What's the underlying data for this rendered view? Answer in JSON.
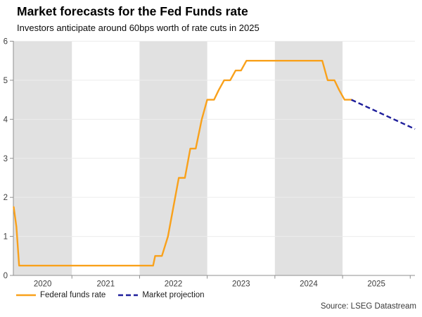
{
  "header": {
    "title": "Market forecasts for the Fed Funds rate",
    "subtitle": "Investors anticipate around 60bps worth of rate cuts in 2025"
  },
  "source": "Source: LSEG Datastream",
  "colors": {
    "fed_funds_orange": "#F9A11B",
    "projection_navy": "#1E1E9B",
    "year_band_gray": "#E1E1E1",
    "gridline": "#ECECEC",
    "axis": "#8F8F8F"
  },
  "chart_data": {
    "type": "line",
    "title": "Market forecasts for the Fed Funds rate",
    "subtitle": "Investors anticipate around 60bps worth of rate cuts in 2025",
    "xlabel": "",
    "ylabel": "",
    "x_ticks": [
      2020,
      2021,
      2022,
      2023,
      2024,
      2025
    ],
    "x_tick_labels": [
      "2020",
      "2021",
      "2022",
      "2023",
      "2024",
      "2025"
    ],
    "x_range": [
      2020.135,
      2026.07
    ],
    "y_ticks": [
      0,
      1,
      2,
      3,
      4,
      5,
      6
    ],
    "y_range": [
      0,
      6
    ],
    "grid": true,
    "shaded_year_bands": [
      2020,
      2022,
      2024
    ],
    "legend_position": "bottom-left",
    "series": [
      {
        "name": "Federal funds rate",
        "style": "solid",
        "color": "#F9A11B",
        "points": [
          [
            2020.14,
            1.75
          ],
          [
            2020.18,
            1.25
          ],
          [
            2020.22,
            0.25
          ],
          [
            2022.2,
            0.25
          ],
          [
            2022.23,
            0.5
          ],
          [
            2022.33,
            0.5
          ],
          [
            2022.42,
            1.0
          ],
          [
            2022.5,
            1.75
          ],
          [
            2022.58,
            2.5
          ],
          [
            2022.67,
            2.5
          ],
          [
            2022.75,
            3.25
          ],
          [
            2022.83,
            3.25
          ],
          [
            2022.92,
            4.0
          ],
          [
            2023.0,
            4.5
          ],
          [
            2023.1,
            4.5
          ],
          [
            2023.17,
            4.75
          ],
          [
            2023.25,
            5.0
          ],
          [
            2023.34,
            5.0
          ],
          [
            2023.42,
            5.25
          ],
          [
            2023.5,
            5.25
          ],
          [
            2023.58,
            5.5
          ],
          [
            2024.7,
            5.5
          ],
          [
            2024.78,
            5.0
          ],
          [
            2024.88,
            5.0
          ],
          [
            2024.95,
            4.75
          ],
          [
            2025.03,
            4.5
          ],
          [
            2025.13,
            4.5
          ]
        ]
      },
      {
        "name": "Market projection",
        "style": "dashed",
        "color": "#1E1E9B",
        "points": [
          [
            2025.13,
            4.5
          ],
          [
            2026.07,
            3.75
          ]
        ]
      }
    ]
  }
}
